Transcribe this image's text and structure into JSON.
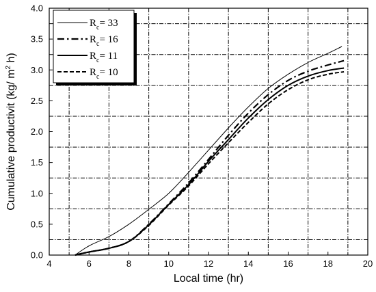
{
  "chart_data": {
    "type": "line",
    "title": "",
    "xlabel": "Local time (hr)",
    "ylabel": "Cumulative productivit (kg/ m",
    "ylabel_sup": "2",
    "ylabel_end": " h)",
    "xlim": [
      4,
      20
    ],
    "ylim": [
      0,
      4
    ],
    "x_ticks": [
      4,
      6,
      8,
      10,
      12,
      14,
      16,
      18,
      20
    ],
    "y_ticks": [
      "0.0",
      "0.5",
      "1.0",
      "1.5",
      "2.0",
      "2.5",
      "3.0",
      "3.5",
      "4.0"
    ],
    "grid": true,
    "legend_position": "top-left",
    "series": [
      {
        "name": "R",
        "name_sub": "c",
        "name_value": "= 33",
        "style": "thin-solid",
        "points": [
          [
            5.3,
            0.0
          ],
          [
            6,
            0.15
          ],
          [
            7,
            0.3
          ],
          [
            8,
            0.5
          ],
          [
            9,
            0.74
          ],
          [
            10,
            1.0
          ],
          [
            11,
            1.34
          ],
          [
            12,
            1.7
          ],
          [
            13,
            2.06
          ],
          [
            14,
            2.4
          ],
          [
            15,
            2.7
          ],
          [
            16,
            2.93
          ],
          [
            17,
            3.12
          ],
          [
            18,
            3.27
          ],
          [
            18.7,
            3.38
          ]
        ]
      },
      {
        "name": "R",
        "name_sub": "c",
        "name_value": "= 16",
        "style": "dash-dot",
        "points": [
          [
            5.3,
            0.0
          ],
          [
            6,
            0.05
          ],
          [
            7,
            0.11
          ],
          [
            8,
            0.22
          ],
          [
            9,
            0.5
          ],
          [
            10,
            0.83
          ],
          [
            11,
            1.17
          ],
          [
            12,
            1.55
          ],
          [
            13,
            1.94
          ],
          [
            14,
            2.3
          ],
          [
            15,
            2.6
          ],
          [
            16,
            2.83
          ],
          [
            17,
            2.98
          ],
          [
            18,
            3.08
          ],
          [
            18.8,
            3.15
          ]
        ]
      },
      {
        "name": "R",
        "name_sub": "c",
        "name_value": "= 11",
        "style": "solid",
        "points": [
          [
            5.3,
            0.0
          ],
          [
            6,
            0.05
          ],
          [
            7,
            0.11
          ],
          [
            8,
            0.22
          ],
          [
            9,
            0.49
          ],
          [
            10,
            0.82
          ],
          [
            11,
            1.14
          ],
          [
            12,
            1.52
          ],
          [
            13,
            1.87
          ],
          [
            14,
            2.22
          ],
          [
            15,
            2.52
          ],
          [
            16,
            2.75
          ],
          [
            17,
            2.9
          ],
          [
            18,
            2.99
          ],
          [
            18.8,
            3.03
          ]
        ]
      },
      {
        "name": "R",
        "name_sub": "c",
        "name_value": "= 10",
        "style": "dashed",
        "points": [
          [
            5.3,
            0.0
          ],
          [
            6,
            0.05
          ],
          [
            7,
            0.11
          ],
          [
            8,
            0.22
          ],
          [
            9,
            0.48
          ],
          [
            10,
            0.81
          ],
          [
            11,
            1.12
          ],
          [
            12,
            1.48
          ],
          [
            13,
            1.82
          ],
          [
            14,
            2.15
          ],
          [
            15,
            2.45
          ],
          [
            16,
            2.68
          ],
          [
            17,
            2.84
          ],
          [
            18,
            2.93
          ],
          [
            18.8,
            2.97
          ]
        ]
      }
    ]
  }
}
